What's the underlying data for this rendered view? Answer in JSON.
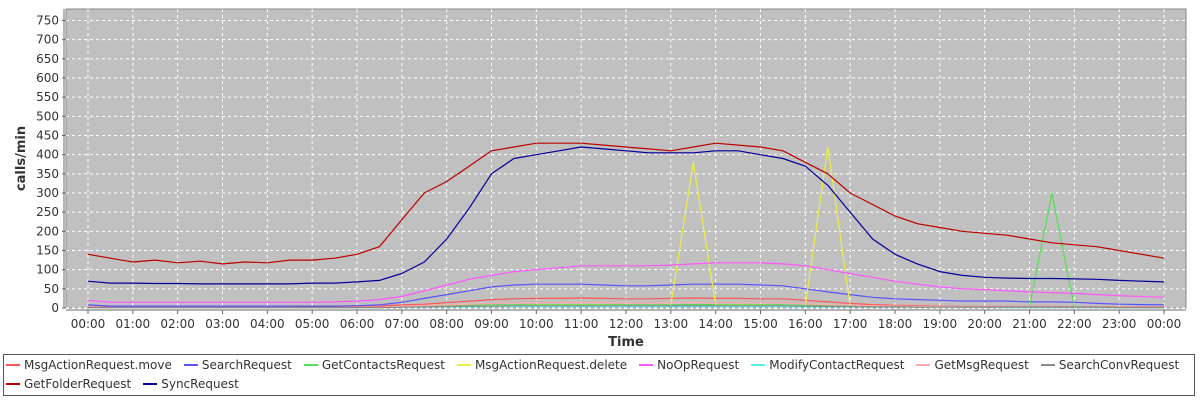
{
  "chart_data": {
    "type": "line",
    "title": "",
    "xlabel": "Time",
    "ylabel": "calls/min",
    "ylim": [
      0,
      780
    ],
    "yticks": [
      0,
      50,
      100,
      150,
      200,
      250,
      300,
      350,
      400,
      450,
      500,
      550,
      600,
      650,
      700,
      750
    ],
    "xticks": [
      "00:00",
      "01:00",
      "02:00",
      "03:00",
      "04:00",
      "05:00",
      "06:00",
      "07:00",
      "08:00",
      "09:00",
      "10:00",
      "11:00",
      "12:00",
      "13:00",
      "14:00",
      "15:00",
      "16:00",
      "17:00",
      "18:00",
      "19:00",
      "20:00",
      "21:00",
      "22:00",
      "23:00",
      "00:00"
    ],
    "grid": true,
    "legend_position": "bottom",
    "x_hours": [
      0,
      0.5,
      1,
      1.5,
      2,
      2.5,
      3,
      3.5,
      4,
      4.5,
      5,
      5.5,
      6,
      6.5,
      7,
      7.5,
      8,
      8.5,
      9,
      9.5,
      10,
      10.5,
      11,
      11.5,
      12,
      12.5,
      13,
      13.5,
      14,
      14.5,
      15,
      15.5,
      16,
      16.5,
      17,
      17.5,
      18,
      18.5,
      19,
      19.5,
      20,
      20.5,
      21,
      21.5,
      22,
      22.5,
      23,
      23.5,
      24
    ],
    "series": [
      {
        "name": "MsgActionRequest.move",
        "color": "#ff5555",
        "values": [
          3,
          2,
          2,
          2,
          2,
          2,
          2,
          2,
          2,
          2,
          3,
          3,
          4,
          5,
          8,
          10,
          14,
          18,
          22,
          24,
          25,
          25,
          26,
          25,
          24,
          24,
          25,
          26,
          25,
          25,
          24,
          24,
          20,
          16,
          12,
          9,
          7,
          6,
          5,
          4,
          4,
          4,
          4,
          4,
          3,
          3,
          3,
          3,
          3
        ]
      },
      {
        "name": "SearchRequest",
        "color": "#5555ff",
        "values": [
          8,
          5,
          5,
          5,
          5,
          5,
          5,
          5,
          5,
          5,
          5,
          5,
          6,
          8,
          15,
          25,
          35,
          45,
          55,
          60,
          62,
          62,
          62,
          60,
          58,
          58,
          60,
          62,
          62,
          62,
          60,
          58,
          50,
          42,
          35,
          28,
          24,
          22,
          20,
          18,
          18,
          18,
          16,
          16,
          15,
          12,
          10,
          9,
          8
        ]
      },
      {
        "name": "GetContactsRequest",
        "color": "#55dd55",
        "values": [
          1,
          1,
          1,
          1,
          1,
          1,
          1,
          1,
          1,
          1,
          1,
          1,
          1,
          2,
          3,
          5,
          6,
          7,
          8,
          8,
          9,
          9,
          9,
          9,
          8,
          8,
          8,
          9,
          9,
          9,
          9,
          8,
          7,
          6,
          5,
          4,
          3,
          3,
          3,
          2,
          2,
          2,
          3,
          300,
          3,
          2,
          2,
          1,
          1
        ]
      },
      {
        "name": "MsgActionRequest.delete",
        "color": "#eeee44",
        "values": [
          1,
          1,
          1,
          1,
          1,
          1,
          1,
          1,
          1,
          1,
          1,
          1,
          1,
          1,
          2,
          3,
          4,
          5,
          6,
          6,
          7,
          7,
          7,
          7,
          6,
          6,
          6,
          380,
          7,
          7,
          7,
          6,
          5,
          420,
          4,
          3,
          3,
          2,
          2,
          2,
          2,
          2,
          2,
          2,
          2,
          2,
          1,
          1,
          1
        ]
      },
      {
        "name": "NoOpRequest",
        "color": "#ff55ff",
        "values": [
          20,
          15,
          15,
          15,
          15,
          15,
          15,
          15,
          15,
          15,
          15,
          16,
          18,
          22,
          30,
          45,
          60,
          75,
          85,
          95,
          100,
          105,
          110,
          110,
          110,
          110,
          112,
          115,
          118,
          118,
          118,
          115,
          110,
          100,
          90,
          80,
          70,
          62,
          55,
          50,
          48,
          45,
          42,
          40,
          38,
          35,
          32,
          30,
          28
        ]
      },
      {
        "name": "ModifyContactRequest",
        "color": "#55eeee",
        "values": [
          1,
          1,
          1,
          1,
          1,
          1,
          1,
          1,
          1,
          1,
          1,
          1,
          1,
          1,
          2,
          2,
          3,
          3,
          4,
          4,
          4,
          4,
          4,
          4,
          4,
          4,
          4,
          4,
          4,
          4,
          4,
          4,
          3,
          3,
          3,
          2,
          2,
          2,
          2,
          2,
          2,
          1,
          1,
          1,
          1,
          1,
          1,
          1,
          1
        ]
      },
      {
        "name": "GetMsgRequest",
        "color": "#ffaaaa",
        "values": [
          2,
          1,
          1,
          1,
          1,
          1,
          1,
          1,
          1,
          1,
          1,
          1,
          2,
          2,
          4,
          6,
          8,
          10,
          12,
          13,
          14,
          14,
          14,
          14,
          13,
          13,
          14,
          14,
          14,
          14,
          14,
          13,
          11,
          9,
          7,
          6,
          5,
          4,
          4,
          3,
          3,
          3,
          3,
          3,
          2,
          2,
          2,
          2,
          2
        ]
      },
      {
        "name": "SearchConvRequest",
        "color": "#888888",
        "values": [
          1,
          1,
          1,
          1,
          1,
          1,
          1,
          1,
          1,
          1,
          1,
          1,
          1,
          1,
          2,
          3,
          4,
          5,
          5,
          6,
          6,
          6,
          6,
          6,
          6,
          6,
          6,
          6,
          6,
          6,
          6,
          6,
          5,
          4,
          4,
          3,
          3,
          2,
          2,
          2,
          2,
          2,
          2,
          2,
          2,
          2,
          1,
          1,
          1
        ]
      },
      {
        "name": "GetFolderRequest",
        "color": "#bb0000",
        "values": [
          140,
          130,
          120,
          125,
          118,
          122,
          115,
          120,
          118,
          125,
          125,
          130,
          140,
          160,
          230,
          300,
          330,
          370,
          410,
          420,
          430,
          430,
          430,
          425,
          420,
          415,
          410,
          420,
          430,
          425,
          420,
          410,
          380,
          350,
          300,
          270,
          240,
          220,
          210,
          200,
          195,
          190,
          180,
          170,
          165,
          160,
          150,
          140,
          130
        ]
      },
      {
        "name": "SyncRequest",
        "color": "#000099",
        "values": [
          70,
          65,
          65,
          64,
          64,
          63,
          63,
          63,
          63,
          63,
          65,
          65,
          68,
          72,
          90,
          120,
          180,
          260,
          350,
          390,
          400,
          410,
          420,
          415,
          410,
          405,
          405,
          405,
          410,
          410,
          400,
          390,
          370,
          320,
          250,
          180,
          140,
          115,
          95,
          85,
          80,
          78,
          77,
          77,
          76,
          75,
          72,
          70,
          68
        ]
      }
    ]
  }
}
